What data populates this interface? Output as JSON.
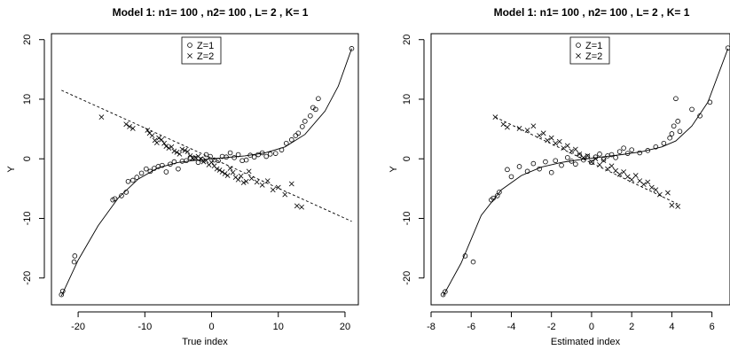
{
  "chart_data": [
    {
      "type": "scatter",
      "title": "Model 1: n1= 100 , n2= 100 , L= 2 , K= 1",
      "xlabel": "True index",
      "ylabel": "Y",
      "xlim": [
        -24,
        22
      ],
      "ylim": [
        -24.5,
        21
      ],
      "xticks": [
        -20,
        -10,
        0,
        10,
        20
      ],
      "yticks": [
        -20,
        -10,
        0,
        10,
        20
      ],
      "xtick_labels": [
        "-20",
        "-10",
        "0",
        "10",
        "20"
      ],
      "ytick_labels": [
        "-20",
        "-10",
        "0",
        "10",
        "20"
      ],
      "legend": {
        "position": "top-center",
        "entries": [
          {
            "label": "Z=1",
            "marker": "circle"
          },
          {
            "label": "Z=2",
            "marker": "cross"
          }
        ]
      },
      "series": [
        {
          "name": "Z=1",
          "marker": "circle",
          "x": [
            -22.5,
            -22.3,
            -20.6,
            -20.5,
            -14.8,
            -14.5,
            -13.5,
            -12.8,
            -12.5,
            -11.8,
            -11.2,
            -10.5,
            -9.8,
            -9.2,
            -8.6,
            -8.0,
            -7.4,
            -6.8,
            -6.2,
            -5.6,
            -5.0,
            -4.4,
            -3.8,
            -3.2,
            -2.6,
            -2.0,
            -1.4,
            -0.8,
            -0.2,
            0.4,
            1.0,
            1.6,
            2.2,
            2.8,
            3.4,
            4.0,
            4.6,
            5.2,
            5.8,
            6.4,
            7.0,
            7.6,
            8.2,
            8.8,
            9.6,
            10.5,
            11.2,
            12.0,
            12.6,
            13.0,
            13.6,
            14.0,
            14.8,
            15.2,
            15.6,
            16.0,
            21.0
          ],
          "y": [
            -22.8,
            -22.2,
            -17.3,
            -16.3,
            -6.9,
            -6.7,
            -6.2,
            -5.6,
            -3.8,
            -3.6,
            -3.1,
            -2.4,
            -1.7,
            -2.1,
            -1.6,
            -1.3,
            -1.1,
            -2.2,
            -0.9,
            -0.5,
            -1.7,
            -0.4,
            -0.3,
            0.2,
            0.1,
            -0.6,
            -0.1,
            0.7,
            0.4,
            -0.2,
            -0.3,
            0.4,
            0.3,
            1.0,
            0.2,
            0.7,
            -0.3,
            -0.2,
            0.6,
            0.3,
            0.7,
            1.0,
            0.4,
            0.8,
            0.9,
            1.5,
            2.6,
            3.2,
            3.9,
            4.3,
            5.4,
            6.3,
            7.2,
            8.6,
            8.3,
            10.1,
            18.5
          ]
        },
        {
          "name": "Z=2",
          "marker": "cross",
          "x": [
            -16.5,
            -12.8,
            -12.3,
            -11.8,
            -9.6,
            -9.3,
            -8.9,
            -8.5,
            -8.2,
            -7.9,
            -7.5,
            -7.1,
            -6.8,
            -6.4,
            -6.0,
            -5.6,
            -5.2,
            -4.8,
            -4.4,
            -4.0,
            -3.6,
            -3.2,
            -2.8,
            -2.4,
            -2.0,
            -1.6,
            -1.2,
            -0.8,
            -0.4,
            0.0,
            0.4,
            0.8,
            1.2,
            1.6,
            2.0,
            2.4,
            2.8,
            3.2,
            3.6,
            4.0,
            4.4,
            4.8,
            5.2,
            5.6,
            6.0,
            6.8,
            7.6,
            8.4,
            9.2,
            10.0,
            11.0,
            12.0,
            12.8,
            13.5
          ],
          "y": [
            7.0,
            5.8,
            5.4,
            5.1,
            4.8,
            4.3,
            3.9,
            3.1,
            2.7,
            3.5,
            3.2,
            2.6,
            2.1,
            1.8,
            2.0,
            1.3,
            1.1,
            0.8,
            1.6,
            1.4,
            1.2,
            0.5,
            0.1,
            0.2,
            0.4,
            0.0,
            -0.5,
            -0.3,
            -1.0,
            -0.6,
            -1.2,
            -1.7,
            -1.9,
            -2.2,
            -2.5,
            -2.8,
            -1.6,
            -2.3,
            -3.1,
            -3.5,
            -2.9,
            -4.0,
            -3.8,
            -2.1,
            -3.3,
            -3.9,
            -4.4,
            -3.7,
            -5.2,
            -4.8,
            -6.0,
            -4.2,
            -7.9,
            -8.1
          ]
        }
      ],
      "fits": [
        {
          "name": "Z=1 fit",
          "style": "solid",
          "x": [
            -22.5,
            -20,
            -17,
            -14,
            -11,
            -8,
            -5,
            -2,
            0,
            2,
            5,
            8,
            11,
            14,
            17,
            19,
            21
          ],
          "y": [
            -23.0,
            -17.0,
            -11.2,
            -6.6,
            -3.4,
            -1.5,
            -0.6,
            -0.2,
            0.0,
            0.2,
            0.5,
            1.0,
            2.0,
            4.1,
            8.0,
            12.2,
            18.5
          ]
        },
        {
          "name": "Z=2 fit",
          "style": "dashed",
          "x": [
            -22.5,
            21
          ],
          "y": [
            11.5,
            -10.5
          ]
        }
      ]
    },
    {
      "type": "scatter",
      "title": "Model 1: n1= 100 , n2= 100 , L= 2 , K= 1",
      "xlabel": "Estimated index",
      "ylabel": "Y",
      "xlim": [
        -8.0,
        6.9
      ],
      "ylim": [
        -24.5,
        21
      ],
      "xticks": [
        -8,
        -6,
        -4,
        -2,
        0,
        2,
        4,
        6
      ],
      "yticks": [
        -20,
        -10,
        0,
        10,
        20
      ],
      "xtick_labels": [
        "-8",
        "-6",
        "-4",
        "-2",
        "0",
        "2",
        "4",
        "6"
      ],
      "ytick_labels": [
        "-20",
        "-10",
        "0",
        "10",
        "20"
      ],
      "legend": {
        "position": "top-center",
        "entries": [
          {
            "label": "Z=1",
            "marker": "circle"
          },
          {
            "label": "Z=2",
            "marker": "cross"
          }
        ]
      },
      "series": [
        {
          "name": "Z=1",
          "marker": "circle",
          "x": [
            -7.4,
            -7.3,
            -6.3,
            -5.9,
            -5.0,
            -4.9,
            -4.7,
            -4.6,
            -4.2,
            -4.0,
            -3.6,
            -3.2,
            -2.9,
            -2.6,
            -2.3,
            -2.0,
            -1.8,
            -1.5,
            -1.2,
            -1.0,
            -0.8,
            -0.6,
            -0.4,
            -0.2,
            0.0,
            0.2,
            0.4,
            0.6,
            0.8,
            1.0,
            1.2,
            1.4,
            1.6,
            1.8,
            2.0,
            2.4,
            2.8,
            3.2,
            3.6,
            3.9,
            4.0,
            4.1,
            4.2,
            4.3,
            4.4,
            5.0,
            5.4,
            5.9,
            6.8
          ],
          "y": [
            -22.8,
            -22.3,
            -16.3,
            -17.3,
            -6.9,
            -6.6,
            -6.2,
            -5.6,
            -1.8,
            -3.0,
            -1.3,
            -2.1,
            -0.8,
            -1.7,
            -0.5,
            -2.3,
            -0.3,
            -1.1,
            0.2,
            -0.4,
            -0.9,
            0.6,
            -0.2,
            0.4,
            -0.6,
            0.3,
            0.8,
            -0.1,
            0.5,
            0.7,
            0.2,
            1.2,
            1.8,
            0.9,
            1.5,
            1.0,
            1.4,
            2.0,
            2.6,
            3.5,
            4.2,
            5.5,
            10.1,
            6.3,
            4.6,
            8.3,
            7.2,
            9.5,
            18.6
          ]
        },
        {
          "name": "Z=2",
          "marker": "cross",
          "x": [
            -4.8,
            -4.4,
            -4.2,
            -3.6,
            -3.2,
            -2.9,
            -2.6,
            -2.4,
            -2.2,
            -2.0,
            -1.8,
            -1.6,
            -1.4,
            -1.2,
            -1.0,
            -0.8,
            -0.6,
            -0.4,
            -0.2,
            0.0,
            0.2,
            0.4,
            0.6,
            0.8,
            1.0,
            1.2,
            1.4,
            1.6,
            1.8,
            2.0,
            2.2,
            2.4,
            2.6,
            2.8,
            3.0,
            3.2,
            3.4,
            3.8,
            4.0,
            4.3
          ],
          "y": [
            7.0,
            5.8,
            5.3,
            5.1,
            4.8,
            5.5,
            3.9,
            4.3,
            3.1,
            3.5,
            2.6,
            2.9,
            1.8,
            2.2,
            1.3,
            1.6,
            0.8,
            0.2,
            0.5,
            -0.5,
            0.0,
            -1.0,
            -0.3,
            -1.7,
            -1.2,
            -2.0,
            -2.6,
            -2.2,
            -3.0,
            -3.5,
            -2.8,
            -3.7,
            -4.3,
            -3.9,
            -4.8,
            -5.2,
            -6.0,
            -5.7,
            -7.8,
            -8.0
          ]
        }
      ],
      "fits": [
        {
          "name": "Z=1 fit",
          "style": "solid",
          "x": [
            -7.4,
            -6.5,
            -5.5,
            -4.5,
            -3.5,
            -2.5,
            -1.5,
            -0.5,
            0.5,
            1.5,
            2.5,
            3.5,
            4.2,
            5.0,
            5.8,
            6.8
          ],
          "y": [
            -23.0,
            -17.5,
            -9.5,
            -5.2,
            -2.8,
            -1.4,
            -0.6,
            -0.1,
            0.3,
            0.7,
            1.2,
            2.0,
            3.0,
            5.5,
            9.5,
            18.5
          ]
        },
        {
          "name": "Z=2 fit",
          "style": "dashed",
          "x": [
            -4.8,
            4.3
          ],
          "y": [
            7.0,
            -7.6
          ]
        }
      ]
    }
  ]
}
